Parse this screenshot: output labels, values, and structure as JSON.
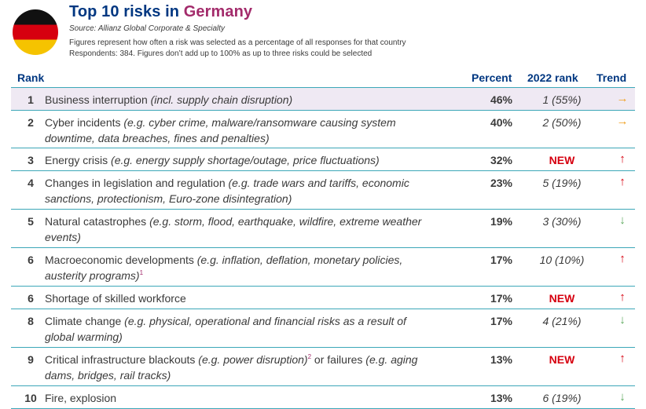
{
  "header": {
    "title_prefix": "Top 10 risks in ",
    "country": "Germany",
    "source": "Source: Allianz Global Corporate & Specialty",
    "note_1": "Figures represent how often a risk was selected as a percentage of all responses for that country",
    "note_2": "Respondents: 384. Figures don’t add up to 100% as up to three risks could be selected",
    "flag_icon": "germany-flag-icon",
    "colors": {
      "title": "#003781",
      "country": "#a32b6b",
      "rule": "#3ca7b8",
      "highlight": "#efe9f3"
    }
  },
  "table": {
    "columns": {
      "rank": "Rank",
      "percent": "Percent",
      "prev": "2022 rank",
      "trend": "Trend"
    },
    "rows": [
      {
        "rank": "1",
        "label": "Business interruption ",
        "example": "(incl. supply chain disruption)",
        "sup": "",
        "label2": "",
        "example2": "",
        "percent": "46%",
        "prev": "1 (55%)",
        "trend": "→",
        "trend_icon": "arrow-right-icon"
      },
      {
        "rank": "2",
        "label": "Cyber incidents ",
        "example": "(e.g. cyber crime, malware/ransomware causing system downtime, data breaches, fines and penalties)",
        "sup": "",
        "label2": "",
        "example2": "",
        "percent": "40%",
        "prev": "2 (50%)",
        "trend": "→",
        "trend_icon": "arrow-right-icon"
      },
      {
        "rank": "3",
        "label": "Energy crisis ",
        "example": "(e.g. energy supply shortage/outage, price fluctuations)",
        "sup": "",
        "label2": "",
        "example2": "",
        "percent": "32%",
        "prev": "NEW",
        "trend": "↑",
        "trend_icon": "arrow-up-icon"
      },
      {
        "rank": "4",
        "label": "Changes in legislation and regulation ",
        "example": "(e.g. trade wars and tariffs, economic sanctions, protectionism, Euro-zone disintegration)",
        "sup": "",
        "label2": "",
        "example2": "",
        "percent": "23%",
        "prev": "5 (19%)",
        "trend": "↑",
        "trend_icon": "arrow-up-icon"
      },
      {
        "rank": "5",
        "label": "Natural catastrophes ",
        "example": "(e.g. storm, flood, earthquake, wildfire, extreme weather events)",
        "sup": "",
        "label2": "",
        "example2": "",
        "percent": "19%",
        "prev": "3 (30%)",
        "trend": "↓",
        "trend_icon": "arrow-down-icon"
      },
      {
        "rank": "6",
        "label": "Macroeconomic developments ",
        "example": "(e.g. inflation, deflation, monetary policies, austerity programs)",
        "sup": "1",
        "label2": "",
        "example2": "",
        "percent": "17%",
        "prev": "10 (10%)",
        "trend": "↑",
        "trend_icon": "arrow-up-icon"
      },
      {
        "rank": "6",
        "label": "Shortage of skilled workforce",
        "example": "",
        "sup": "",
        "label2": "",
        "example2": "",
        "percent": "17%",
        "prev": "NEW",
        "trend": "↑",
        "trend_icon": "arrow-up-icon"
      },
      {
        "rank": "8",
        "label": "Climate change ",
        "example": "(e.g. physical, operational and financial risks as a result of global warming)",
        "sup": "",
        "label2": "",
        "example2": "",
        "percent": "17%",
        "prev": "4 (21%)",
        "trend": "↓",
        "trend_icon": "arrow-down-icon"
      },
      {
        "rank": "9",
        "label": "Critical infrastructure blackouts ",
        "example": "(e.g. power disruption)",
        "sup": "2",
        "label2": " or failures ",
        "example2": "(e.g. aging dams, bridges, rail tracks)",
        "percent": "13%",
        "prev": "NEW",
        "trend": "↑",
        "trend_icon": "arrow-up-icon"
      },
      {
        "rank": "10",
        "label": "Fire, explosion",
        "example": "",
        "sup": "",
        "label2": "",
        "example2": "",
        "percent": "13%",
        "prev": "6 (19%)",
        "trend": "↓",
        "trend_icon": "arrow-down-icon"
      }
    ]
  }
}
